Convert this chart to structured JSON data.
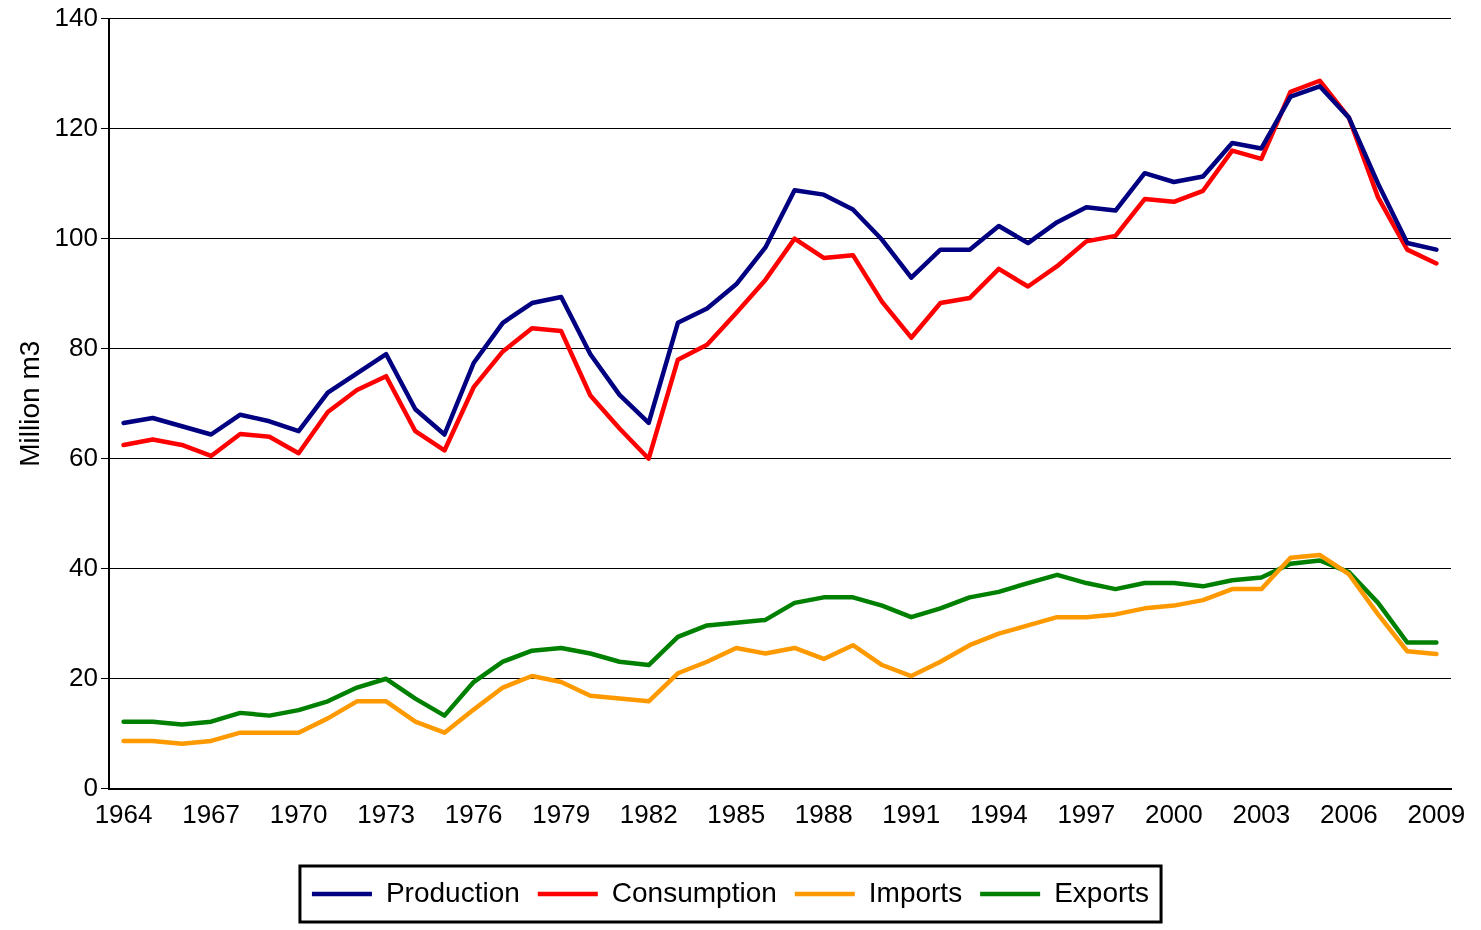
{
  "chart_data": {
    "type": "line",
    "ylabel": "Million m3",
    "categories": [
      "1964",
      null,
      null,
      "1967",
      null,
      null,
      "1970",
      null,
      null,
      "1973",
      null,
      null,
      "1976",
      null,
      null,
      "1979",
      null,
      null,
      "1982",
      null,
      null,
      "1985",
      null,
      null,
      "1988",
      null,
      null,
      "1991",
      null,
      null,
      "1994",
      null,
      null,
      "1997",
      null,
      null,
      "2000",
      null,
      null,
      "2003",
      null,
      null,
      "2006",
      null,
      null,
      "2009"
    ],
    "series": [
      {
        "name": "Production",
        "color": "#000080",
        "values": [
          66.5,
          67.4,
          65.9,
          64.4,
          68,
          66.8,
          65,
          72,
          75.5,
          79,
          69,
          64.4,
          77.4,
          84.7,
          88.3,
          89.4,
          79,
          71.6,
          66.5,
          84.7,
          87.3,
          91.7,
          98.4,
          108.8,
          108,
          105.3,
          99.8,
          92.9,
          98,
          98,
          102.3,
          99.2,
          103,
          105.7,
          105.1,
          111.9,
          110.3,
          111.3,
          117.4,
          116.4,
          125.8,
          127.7,
          122,
          110,
          99.2,
          98
        ]
      },
      {
        "name": "Consumption",
        "color": "#ff0000",
        "values": [
          62.5,
          63.5,
          62.5,
          60.5,
          64.5,
          64,
          61,
          68.5,
          72.5,
          75,
          65,
          61.5,
          73,
          79.5,
          83.7,
          83.2,
          71.5,
          65.5,
          60,
          78,
          80.7,
          86.5,
          92.5,
          100,
          96.5,
          97,
          88.5,
          82,
          88.3,
          89.2,
          94.5,
          91.3,
          95,
          99.5,
          100.5,
          107.2,
          106.7,
          108.7,
          116,
          114.5,
          126.7,
          128.7,
          122,
          107.5,
          98,
          95.5
        ]
      },
      {
        "name": "Imports",
        "color": "#ff9900",
        "values": [
          8.7,
          8.7,
          8.2,
          8.7,
          10.2,
          10.2,
          10.2,
          12.8,
          15.9,
          15.9,
          12.2,
          10.2,
          14.4,
          18.4,
          20.5,
          19.4,
          16.9,
          16.4,
          15.9,
          21,
          23.1,
          25.6,
          24.6,
          25.6,
          23.6,
          26.1,
          22.5,
          20.5,
          23.1,
          26.1,
          28.2,
          29.7,
          31.2,
          31.2,
          31.7,
          32.8,
          33.3,
          34.3,
          36.3,
          36.3,
          42,
          42.5,
          39,
          31.7,
          25,
          24.5
        ]
      },
      {
        "name": "Exports",
        "color": "#008000",
        "values": [
          12.2,
          12.2,
          11.7,
          12.2,
          13.8,
          13.3,
          14.3,
          15.9,
          18.4,
          20,
          16.4,
          13.3,
          19.4,
          23.1,
          25.1,
          25.6,
          24.6,
          23.1,
          22.5,
          27.6,
          29.7,
          30.2,
          30.7,
          33.8,
          34.8,
          34.8,
          33.3,
          31.2,
          32.8,
          34.8,
          35.8,
          37.4,
          38.9,
          37.4,
          36.3,
          37.4,
          37.4,
          36.8,
          37.9,
          38.4,
          40.9,
          41.5,
          39.4,
          33.8,
          26.6,
          26.6
        ]
      }
    ],
    "ylim": [
      0,
      140
    ],
    "yticks": [
      0,
      20,
      40,
      60,
      80,
      100,
      120,
      140
    ],
    "grid": "y",
    "legend": "bottom",
    "marker": "none",
    "line_style": "solid"
  }
}
